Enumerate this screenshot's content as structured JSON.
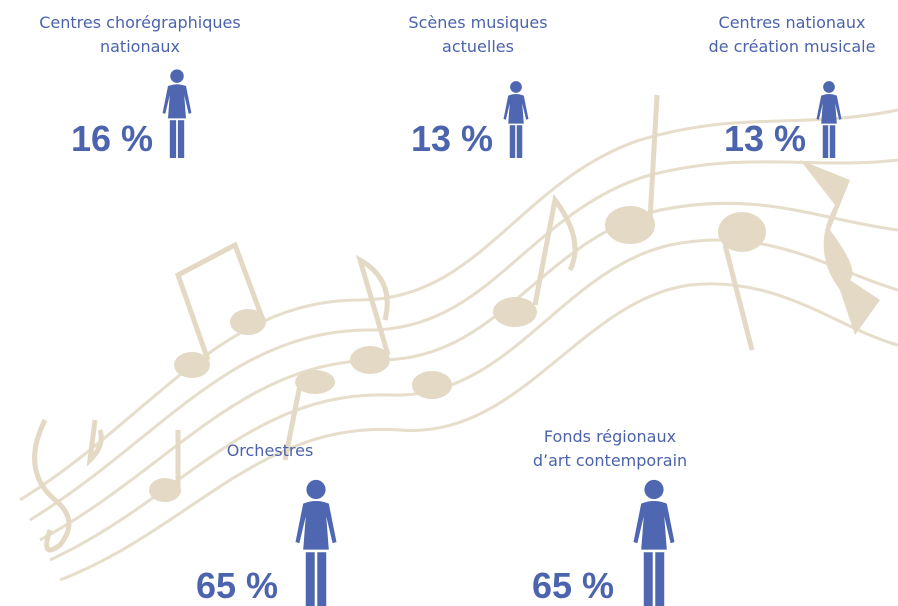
{
  "items": [
    {
      "label": [
        "Centres chorégraphiques",
        "nationaux"
      ],
      "value": "16 %"
    },
    {
      "label": [
        "Scènes musiques",
        "actuelles"
      ],
      "value": "13 %"
    },
    {
      "label": [
        "Centres nationaux",
        "de création musicale"
      ],
      "value": "13 %"
    },
    {
      "label": [
        "Orchestres"
      ],
      "value": "65 %"
    },
    {
      "label": [
        "Fonds régionaux",
        "d’art contemporain"
      ],
      "value": "65 %"
    }
  ]
}
